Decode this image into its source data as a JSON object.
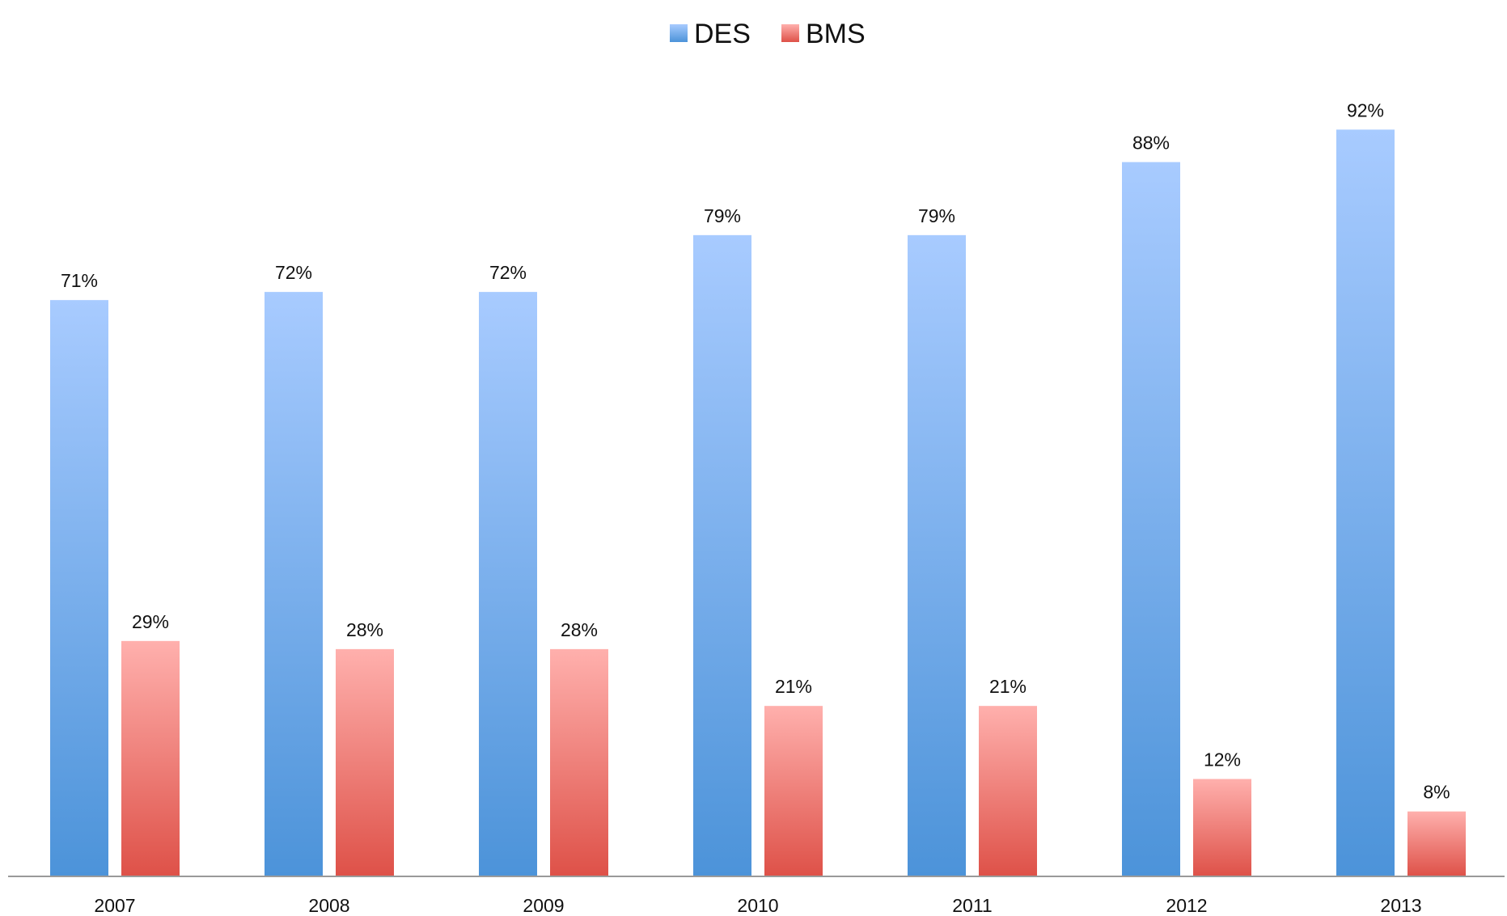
{
  "chart_data": {
    "type": "bar",
    "title": "",
    "xlabel": "",
    "ylabel": "",
    "categories": [
      "2007",
      "2008",
      "2009",
      "2010",
      "2011",
      "2012",
      "2013"
    ],
    "series": [
      {
        "name": "DES",
        "values": [
          71,
          72,
          72,
          79,
          79,
          88,
          92
        ],
        "labels": [
          "71%",
          "72%",
          "72%",
          "79%",
          "79%",
          "88%",
          "92%"
        ],
        "color_top": "#a8cbff",
        "color_bottom": "#4c93d9"
      },
      {
        "name": "BMS",
        "values": [
          29,
          28,
          28,
          21,
          21,
          12,
          8
        ],
        "labels": [
          "29%",
          "28%",
          "28%",
          "21%",
          "21%",
          "12%",
          "8%"
        ],
        "color_top": "#ffb0ad",
        "color_bottom": "#de5148"
      }
    ],
    "ylim": [
      0,
      100
    ],
    "grid": false,
    "legend_position": "top-center",
    "axis_color": "#9a9a9a"
  }
}
